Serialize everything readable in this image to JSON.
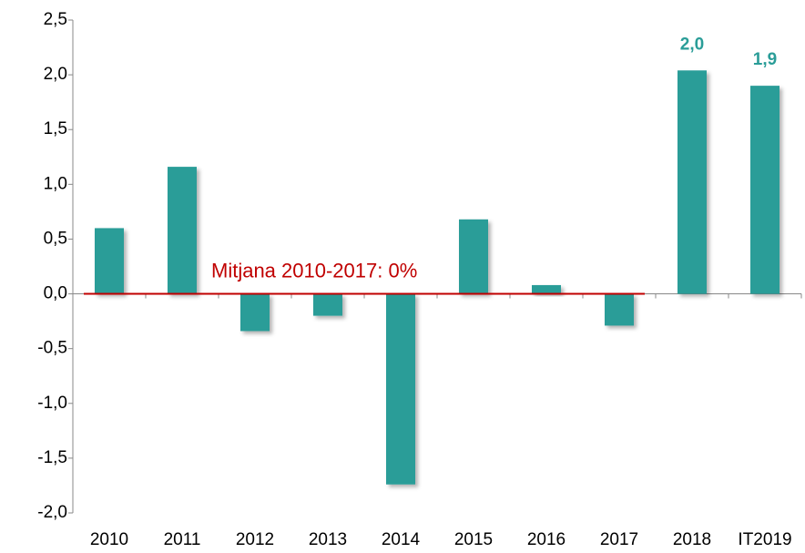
{
  "chart_data": {
    "type": "bar",
    "categories": [
      "2010",
      "2011",
      "2012",
      "2013",
      "2014",
      "2015",
      "2016",
      "2017",
      "2018",
      "IT2019"
    ],
    "values": [
      0.6,
      1.16,
      -0.34,
      -0.2,
      -1.74,
      0.68,
      0.08,
      -0.29,
      2.04,
      1.9
    ],
    "value_labels": [
      null,
      null,
      null,
      null,
      null,
      null,
      null,
      null,
      "2,0",
      "1,9"
    ],
    "color": "#2a9d98",
    "ylim": [
      -2.0,
      2.5
    ],
    "yticks": [
      {
        "value": -2.0,
        "label": "-2,0"
      },
      {
        "value": -1.5,
        "label": "-1,5"
      },
      {
        "value": -1.0,
        "label": "-1,0"
      },
      {
        "value": -0.5,
        "label": "-0,5"
      },
      {
        "value": 0.0,
        "label": "0,0"
      },
      {
        "value": 0.5,
        "label": "0,5"
      },
      {
        "value": 1.0,
        "label": "1,0"
      },
      {
        "value": 1.5,
        "label": "1,5"
      },
      {
        "value": 2.0,
        "label": "2,0"
      },
      {
        "value": 2.5,
        "label": "2,5"
      }
    ],
    "grid": false,
    "annotation": {
      "text": "Mitjana 2010-2017: 0%",
      "value": 0,
      "from": "2010",
      "to": "2017",
      "color": "#c00000"
    }
  }
}
